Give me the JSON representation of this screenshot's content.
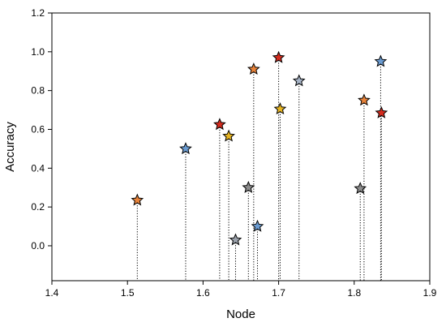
{
  "chart_data": {
    "type": "scatter",
    "title": "",
    "xlabel": "Node",
    "ylabel": "Accuracy",
    "xlim": [
      1.4,
      1.9
    ],
    "ylim": [
      -0.18,
      1.2
    ],
    "xticks": [
      "1.4",
      "1.5",
      "1.6",
      "1.7",
      "1.8",
      "1.9"
    ],
    "yticks": [
      "0.0",
      "0.2",
      "0.4",
      "0.6",
      "0.8",
      "1.0",
      "1.2"
    ],
    "grid": false,
    "legend": "none",
    "marker": "star",
    "drop_lines": "dotted vertical lines from each point to the bottom axis",
    "points": [
      {
        "x": 1.513,
        "y": 0.235,
        "color": "#e8833a"
      },
      {
        "x": 1.577,
        "y": 0.5,
        "color": "#6a9bd1"
      },
      {
        "x": 1.622,
        "y": 0.625,
        "color": "#d42b1e"
      },
      {
        "x": 1.634,
        "y": 0.565,
        "color": "#e6b422"
      },
      {
        "x": 1.643,
        "y": 0.03,
        "color": "#9aa1ab"
      },
      {
        "x": 1.66,
        "y": 0.3,
        "color": "#8c8c8c"
      },
      {
        "x": 1.667,
        "y": 0.91,
        "color": "#e8833a"
      },
      {
        "x": 1.672,
        "y": 0.1,
        "color": "#6a9bd1"
      },
      {
        "x": 1.7,
        "y": 0.97,
        "color": "#d42b1e"
      },
      {
        "x": 1.702,
        "y": 0.705,
        "color": "#e6b422"
      },
      {
        "x": 1.727,
        "y": 0.85,
        "color": "#a6b3c6"
      },
      {
        "x": 1.808,
        "y": 0.295,
        "color": "#8c8c8c"
      },
      {
        "x": 1.813,
        "y": 0.75,
        "color": "#e8833a"
      },
      {
        "x": 1.835,
        "y": 0.95,
        "color": "#6a9bd1"
      },
      {
        "x": 1.836,
        "y": 0.685,
        "color": "#d42b1e"
      }
    ]
  }
}
